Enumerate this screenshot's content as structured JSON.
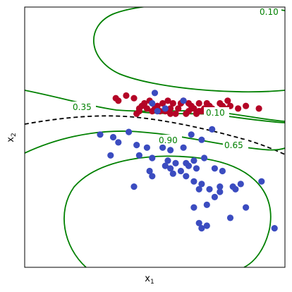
{
  "chart_data": {
    "type": "scatter",
    "title": "",
    "xlabel": "x",
    "xlabel_sub": "1",
    "ylabel": "x",
    "ylabel_sub": "2",
    "xlim": [
      0,
      10
    ],
    "ylim": [
      0,
      10
    ],
    "grid": false,
    "ticks_visible": false,
    "colors": {
      "class_red": "#b40426",
      "class_blue": "#3b4cc0",
      "contour": "#008000",
      "boundary": "#000000"
    },
    "contour_labels": [
      "0.10",
      "0.35",
      "0.10",
      "0.90",
      "0.65"
    ],
    "series": [
      {
        "color": "red",
        "points": [
          [
            3.5,
            6.5
          ],
          [
            3.9,
            6.6
          ],
          [
            4.2,
            6.5
          ],
          [
            4.5,
            6.2
          ],
          [
            4.7,
            6.1
          ],
          [
            4.9,
            6.0
          ],
          [
            5.1,
            6.2
          ],
          [
            5.3,
            6.3
          ],
          [
            5.5,
            6.4
          ],
          [
            5.7,
            6.3
          ],
          [
            5.9,
            6.1
          ],
          [
            6.1,
            6.4
          ],
          [
            6.3,
            6.0
          ],
          [
            6.5,
            6.1
          ],
          [
            6.7,
            6.3
          ],
          [
            6.9,
            6.1
          ],
          [
            7.1,
            6.2
          ],
          [
            7.3,
            6.0
          ],
          [
            7.5,
            6.3
          ],
          [
            7.7,
            6.1
          ],
          [
            7.9,
            6.2
          ],
          [
            3.6,
            6.4
          ],
          [
            4.4,
            6.0
          ],
          [
            4.6,
            6.3
          ],
          [
            5.0,
            6.1
          ],
          [
            5.4,
            6.0
          ],
          [
            5.6,
            6.1
          ],
          [
            5.8,
            5.9
          ],
          [
            6.0,
            6.3
          ],
          [
            6.2,
            5.9
          ],
          [
            6.4,
            6.2
          ],
          [
            6.6,
            5.9
          ],
          [
            6.8,
            6.0
          ],
          [
            7.0,
            6.3
          ],
          [
            7.2,
            6.1
          ],
          [
            7.4,
            6.0
          ],
          [
            7.6,
            6.2
          ],
          [
            8.5,
            6.2
          ],
          [
            9.0,
            6.1
          ],
          [
            4.3,
            5.9
          ],
          [
            4.8,
            6.4
          ],
          [
            5.2,
            6.0
          ],
          [
            5.6,
            5.9
          ],
          [
            6.3,
            6.3
          ],
          [
            6.7,
            6.0
          ],
          [
            7.8,
            6.4
          ],
          [
            8.2,
            6.1
          ],
          [
            4.4,
            6.1
          ]
        ]
      },
      {
        "color": "blue",
        "points": [
          [
            2.9,
            5.1
          ],
          [
            3.4,
            5.0
          ],
          [
            3.6,
            4.8
          ],
          [
            4.0,
            5.2
          ],
          [
            4.3,
            4.7
          ],
          [
            4.7,
            4.6
          ],
          [
            5.2,
            4.9
          ],
          [
            5.3,
            4.6
          ],
          [
            5.6,
            4.5
          ],
          [
            6.1,
            4.6
          ],
          [
            6.4,
            5.1
          ],
          [
            6.8,
            4.9
          ],
          [
            7.2,
            5.3
          ],
          [
            3.3,
            4.3
          ],
          [
            4.4,
            4.3
          ],
          [
            4.9,
            4.2
          ],
          [
            5.5,
            4.1
          ],
          [
            5.8,
            4.0
          ],
          [
            6.2,
            4.0
          ],
          [
            6.5,
            4.1
          ],
          [
            5.4,
            3.9
          ],
          [
            5.6,
            3.8
          ],
          [
            6.0,
            3.7
          ],
          [
            6.3,
            3.9
          ],
          [
            6.6,
            3.8
          ],
          [
            6.9,
            4.2
          ],
          [
            7.3,
            3.8
          ],
          [
            7.6,
            3.7
          ],
          [
            4.8,
            3.7
          ],
          [
            4.9,
            3.5
          ],
          [
            5.7,
            3.6
          ],
          [
            6.2,
            3.5
          ],
          [
            6.5,
            3.3
          ],
          [
            6.8,
            3.2
          ],
          [
            6.7,
            3.0
          ],
          [
            7.1,
            3.0
          ],
          [
            7.5,
            3.1
          ],
          [
            8.0,
            3.1
          ],
          [
            8.3,
            3.2
          ],
          [
            8.1,
            3.0
          ],
          [
            9.1,
            3.3
          ],
          [
            8.5,
            2.3
          ],
          [
            9.6,
            1.5
          ],
          [
            6.5,
            2.3
          ],
          [
            7.0,
            2.4
          ],
          [
            7.3,
            2.7
          ],
          [
            7.5,
            2.9
          ],
          [
            4.2,
            3.1
          ],
          [
            6.7,
            1.7
          ],
          [
            6.8,
            1.5
          ],
          [
            7.0,
            1.6
          ],
          [
            7.9,
            1.9
          ],
          [
            5.0,
            6.7
          ],
          [
            5.1,
            6.0
          ],
          [
            6.1,
            6.4
          ],
          [
            4.9,
            6.3
          ],
          [
            5.4,
            6.1
          ]
        ]
      }
    ]
  }
}
